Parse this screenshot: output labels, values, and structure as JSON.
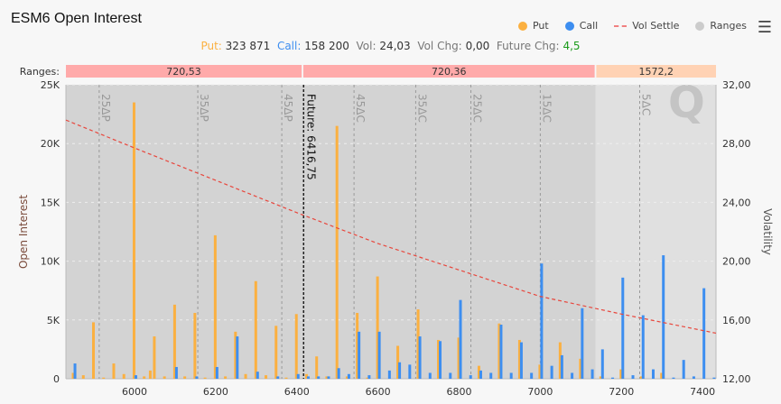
{
  "title": "ESM6 Open Interest",
  "legend": {
    "put": "Put",
    "call": "Call",
    "vol": "Vol Settle",
    "ranges": "Ranges"
  },
  "colors": {
    "put": "#fbb040",
    "call": "#3d8ef0",
    "vol": "#e8463c",
    "range_red": "#ffaaaa",
    "range_orange": "#ffd2b4"
  },
  "stats": {
    "put_label": "Put:",
    "put": "323 871",
    "call_label": "Call:",
    "call": "158 200",
    "vol_label": "Vol:",
    "vol": "24,03",
    "volchg_label": "Vol Chg:",
    "volchg": "0,00",
    "futchg_label": "Future Chg:",
    "futchg": "4,5"
  },
  "chart_data": {
    "type": "bar",
    "xlim": [
      5831,
      7433
    ],
    "ylim": [
      0,
      25000
    ],
    "y2lim": [
      12,
      32
    ],
    "ylabel": "Open Interest",
    "y2label": "Volatility",
    "xticks": [
      6000,
      6200,
      6400,
      6600,
      6800,
      7000,
      7200,
      7400
    ],
    "yticks": [
      "0",
      "5K",
      "10K",
      "15K",
      "20K",
      "25K"
    ],
    "y2ticks": [
      "12,00",
      "16,00",
      "20,00",
      "24,00",
      "28,00",
      "32,00"
    ],
    "ranges_label": "Ranges:",
    "ranges": [
      {
        "from": 5831,
        "to": 6412,
        "label": "720,53",
        "color": "red"
      },
      {
        "from": 6416,
        "to": 7134,
        "label": "720,36",
        "color": "red"
      },
      {
        "from": 7138,
        "to": 7433,
        "label": "1572,2",
        "color": "orange"
      }
    ],
    "shaded_from": 7136,
    "delta_lines": [
      {
        "x": 5913,
        "label": "25ΔP"
      },
      {
        "x": 6156,
        "label": "35ΔP"
      },
      {
        "x": 6363,
        "label": "45ΔP"
      },
      {
        "x": 6541,
        "label": "45ΔC"
      },
      {
        "x": 6693,
        "label": "35ΔC"
      },
      {
        "x": 6829,
        "label": "25ΔC"
      },
      {
        "x": 7000,
        "label": "15ΔC"
      },
      {
        "x": 7245,
        "label": "5ΔC"
      }
    ],
    "future": {
      "x": 6416.75,
      "label": "Future: 6416,75"
    },
    "strikes": [
      5850,
      5875,
      5900,
      5925,
      5950,
      5975,
      6000,
      6025,
      6040,
      6050,
      6075,
      6100,
      6125,
      6150,
      6175,
      6200,
      6225,
      6250,
      6275,
      6300,
      6325,
      6350,
      6375,
      6400,
      6425,
      6450,
      6475,
      6500,
      6525,
      6550,
      6575,
      6600,
      6625,
      6650,
      6675,
      6700,
      6725,
      6750,
      6775,
      6800,
      6825,
      6850,
      6875,
      6900,
      6925,
      6950,
      6975,
      7000,
      7025,
      7050,
      7075,
      7100,
      7125,
      7150,
      7175,
      7200,
      7225,
      7250,
      7275,
      7300,
      7325,
      7350,
      7375,
      7400,
      7425
    ],
    "series": [
      {
        "name": "Put",
        "values": [
          500,
          300,
          4800,
          100,
          1300,
          400,
          23500,
          200,
          700,
          3600,
          200,
          6300,
          200,
          5600,
          100,
          12200,
          200,
          4000,
          400,
          8300,
          300,
          4500,
          100,
          5500,
          400,
          1900,
          200,
          21500,
          200,
          5600,
          100,
          8700,
          0,
          2800,
          0,
          5900,
          0,
          3300,
          0,
          3500,
          0,
          1100,
          0,
          4700,
          0,
          3300,
          0,
          1200,
          0,
          3100,
          0,
          1700,
          0,
          200,
          0,
          800,
          0,
          200,
          0,
          500,
          0,
          0,
          0,
          0,
          0
        ]
      },
      {
        "name": "Call",
        "values": [
          1300,
          0,
          0,
          0,
          0,
          0,
          300,
          0,
          0,
          0,
          0,
          1000,
          0,
          200,
          0,
          1000,
          0,
          3600,
          0,
          600,
          0,
          200,
          0,
          400,
          200,
          200,
          200,
          900,
          400,
          4000,
          300,
          4000,
          700,
          1400,
          1200,
          3600,
          500,
          3200,
          500,
          6700,
          300,
          700,
          500,
          4600,
          500,
          3100,
          500,
          9800,
          1100,
          2000,
          500,
          6000,
          800,
          2500,
          100,
          8600,
          300,
          5400,
          800,
          10500,
          100,
          1600,
          200,
          7700,
          100
        ]
      },
      {
        "name": "Vol Settle",
        "x": [
          5831,
          6000,
          6200,
          6400,
          6600,
          6800,
          7000,
          7200,
          7433
        ],
        "values": [
          29.6,
          27.7,
          25.5,
          23.3,
          21.2,
          19.4,
          17.6,
          16.4,
          15.1
        ]
      }
    ]
  }
}
